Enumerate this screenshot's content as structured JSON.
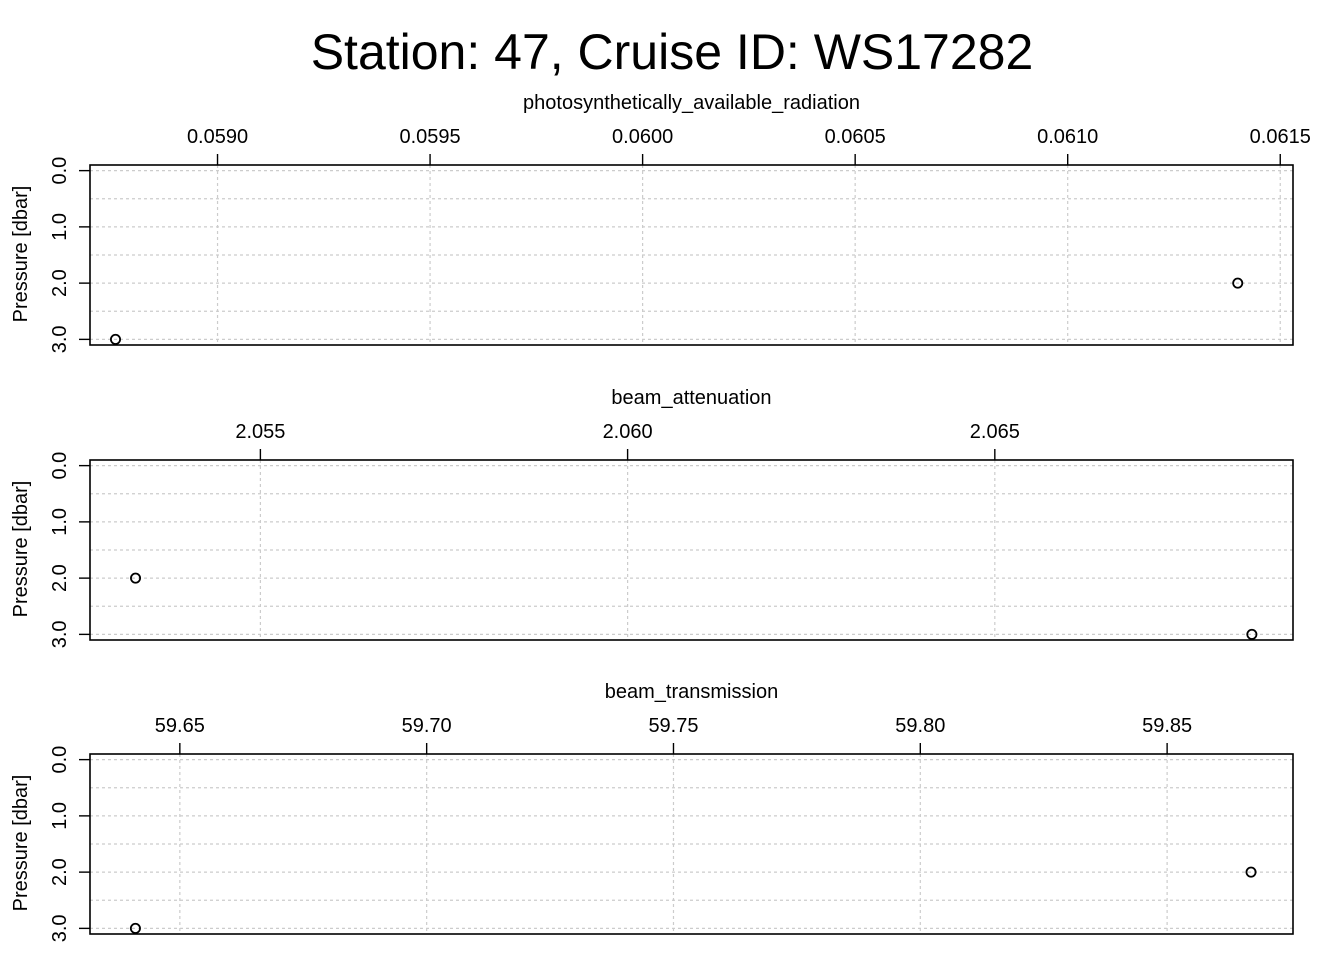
{
  "title": "Station: 47, Cruise ID: WS17282",
  "chart_data": [
    {
      "type": "scatter",
      "xlabel": "photosynthetically_available_radiation",
      "ylabel": "Pressure [dbar]",
      "x_ticks": [
        0.059,
        0.0595,
        0.06,
        0.0605,
        0.061,
        0.0615
      ],
      "x_tick_labels": [
        "0.0590",
        "0.0595",
        "0.0600",
        "0.0605",
        "0.0610",
        "0.0615"
      ],
      "xlim": [
        0.0587,
        0.06153
      ],
      "y_ticks": [
        0.0,
        1.0,
        2.0,
        3.0
      ],
      "y_tick_labels": [
        "0.0",
        "1.0",
        "2.0",
        "3.0"
      ],
      "ylim": [
        3.1,
        -0.1
      ],
      "y_reversed": true,
      "grid": true,
      "x": [
        0.0614,
        0.05876
      ],
      "y": [
        2.0,
        3.0
      ]
    },
    {
      "type": "scatter",
      "xlabel": "beam_attenuation",
      "ylabel": "Pressure [dbar]",
      "x_ticks": [
        2.055,
        2.06,
        2.065
      ],
      "x_tick_labels": [
        "2.055",
        "2.060",
        "2.065"
      ],
      "xlim": [
        2.05268,
        2.06906
      ],
      "y_ticks": [
        0.0,
        1.0,
        2.0,
        3.0
      ],
      "y_tick_labels": [
        "0.0",
        "1.0",
        "2.0",
        "3.0"
      ],
      "ylim": [
        3.1,
        -0.1
      ],
      "y_reversed": true,
      "grid": true,
      "x": [
        2.0533,
        2.0685
      ],
      "y": [
        2.0,
        3.0
      ]
    },
    {
      "type": "scatter",
      "xlabel": "beam_transmission",
      "ylabel": "Pressure [dbar]",
      "x_ticks": [
        59.65,
        59.7,
        59.75,
        59.8,
        59.85
      ],
      "x_tick_labels": [
        "59.65",
        "59.70",
        "59.75",
        "59.80",
        "59.85"
      ],
      "xlim": [
        59.6318,
        59.8755
      ],
      "y_ticks": [
        0.0,
        1.0,
        2.0,
        3.0
      ],
      "y_tick_labels": [
        "0.0",
        "1.0",
        "2.0",
        "3.0"
      ],
      "ylim": [
        3.1,
        -0.1
      ],
      "y_reversed": true,
      "grid": true,
      "x": [
        59.867,
        59.641
      ],
      "y": [
        2.0,
        3.0
      ]
    }
  ]
}
